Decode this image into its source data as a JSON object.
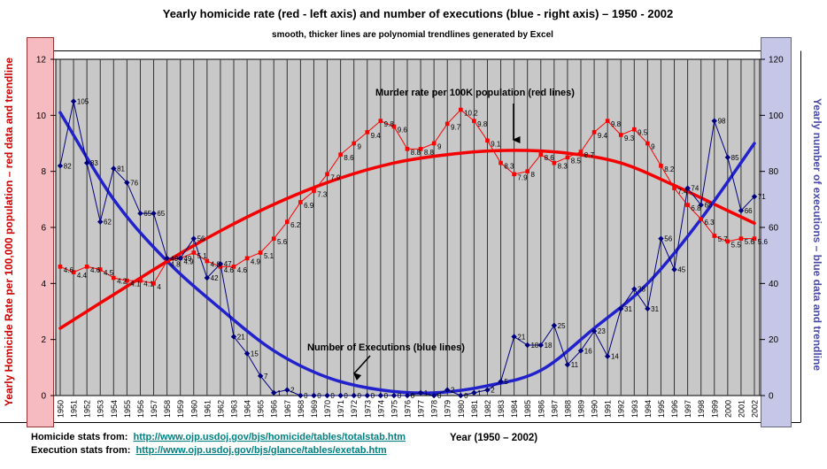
{
  "title": "Yearly homicide rate (red - left axis) and number of executions (blue - right axis) – 1950 - 2002",
  "subtitle": "smooth, thicker lines are polynomial trendlines generated by Excel",
  "left_axis": {
    "title": "Yearly Homicide Rate per 100,000 population – red data and trendline",
    "ticks": [
      0,
      2,
      4,
      6,
      8,
      10,
      12
    ],
    "color": "#cc0000",
    "band_fill": "#f5bbc0",
    "band_border": "#993333"
  },
  "right_axis": {
    "title": "Yearly number of executions – blue data and trendline",
    "ticks": [
      0,
      20,
      40,
      60,
      80,
      100,
      120
    ],
    "color": "#4a4aa8",
    "band_fill": "#c6c6e7",
    "band_border": "#666688"
  },
  "annotations": {
    "red_label": "Murder rate per 100K population (red lines)",
    "blue_label": "Number of Executions (blue lines)"
  },
  "footer": {
    "homicide_label": "Homicide stats from:",
    "homicide_url": "http://www.ojp.usdoj.gov/bjs/homicide/tables/totalstab.htm",
    "execution_label": "Execution stats from:",
    "execution_url": "http://www.ojp.usdoj.gov/bjs/glance/tables/exetab.htm",
    "xaxis_caption": "Year (1950 – 2002)"
  },
  "chart_data": {
    "type": "line",
    "grid": "vertical-per-year",
    "legend_position": "none",
    "plot_bg": "#c8c8c8",
    "x": [
      1950,
      1951,
      1952,
      1953,
      1954,
      1955,
      1956,
      1957,
      1958,
      1959,
      1960,
      1961,
      1962,
      1963,
      1964,
      1965,
      1966,
      1967,
      1968,
      1969,
      1970,
      1971,
      1972,
      1973,
      1974,
      1975,
      1976,
      1977,
      1978,
      1979,
      1980,
      1981,
      1982,
      1983,
      1984,
      1985,
      1986,
      1987,
      1988,
      1989,
      1990,
      1991,
      1992,
      1993,
      1994,
      1995,
      1996,
      1997,
      1998,
      1999,
      2000,
      2001,
      2002
    ],
    "left_ylim": [
      0,
      12
    ],
    "right_ylim": [
      0,
      120
    ],
    "series": [
      {
        "name": "Homicide rate per 100,000 population",
        "axis": "left",
        "color": "#ff0000",
        "marker": "square",
        "values": [
          4.6,
          4.4,
          4.6,
          4.5,
          4.2,
          4.1,
          4.1,
          4.0,
          4.8,
          4.9,
          5.1,
          4.8,
          4.6,
          4.6,
          4.9,
          5.1,
          5.6,
          6.2,
          6.9,
          7.3,
          7.9,
          8.6,
          9.0,
          9.4,
          9.8,
          9.6,
          8.8,
          8.8,
          9.0,
          9.7,
          10.2,
          9.8,
          9.1,
          8.3,
          7.9,
          8.0,
          8.6,
          8.3,
          8.5,
          8.7,
          9.4,
          9.8,
          9.3,
          9.5,
          9.0,
          8.2,
          7.4,
          6.8,
          6.3,
          5.7,
          5.5,
          5.6,
          5.6
        ]
      },
      {
        "name": "Number of executions",
        "axis": "right",
        "color": "#000080",
        "marker": "diamond",
        "values": [
          82,
          105,
          83,
          62,
          81,
          76,
          65,
          65,
          49,
          49,
          56,
          42,
          47,
          21,
          15,
          7,
          1,
          2,
          0,
          0,
          0,
          0,
          0,
          0,
          0,
          0,
          0,
          1,
          0,
          2,
          0,
          1,
          2,
          5,
          21,
          18,
          18,
          25,
          11,
          16,
          23,
          14,
          31,
          38,
          31,
          56,
          45,
          74,
          68,
          98,
          85,
          66,
          71
        ]
      }
    ],
    "trendlines": [
      {
        "name": "Homicide rate polynomial trendline",
        "axis": "left",
        "color": "#f40000",
        "x": [
          1950,
          1955,
          1960,
          1965,
          1970,
          1975,
          1980,
          1984,
          1988,
          1992,
          1996,
          2000,
          2002
        ],
        "values": [
          2.4,
          3.9,
          5.35,
          6.6,
          7.6,
          8.3,
          8.65,
          8.75,
          8.65,
          8.3,
          7.5,
          6.6,
          6.15
        ]
      },
      {
        "name": "Executions polynomial trendline",
        "axis": "right",
        "color": "#2222cc",
        "x": [
          1950,
          1954,
          1958,
          1962,
          1966,
          1970,
          1974,
          1978,
          1982,
          1986,
          1990,
          1994,
          1998,
          2002
        ],
        "values": [
          101,
          70,
          48,
          31,
          16,
          6.5,
          2,
          1,
          3.5,
          9,
          24,
          40,
          63,
          90
        ]
      }
    ]
  }
}
